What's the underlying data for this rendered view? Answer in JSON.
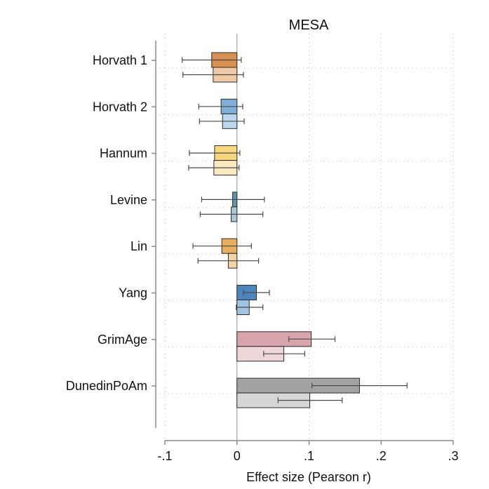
{
  "chart_data": {
    "type": "bar",
    "orientation": "horizontal",
    "title": "MESA",
    "xlabel": "Effect size (Pearson r)",
    "ylabel": "",
    "xlim": [
      -0.1,
      0.3
    ],
    "xticks": [
      -0.1,
      0,
      0.1,
      0.2,
      0.3
    ],
    "xtick_labels": [
      "-.1",
      "0",
      ".1",
      ".2",
      ".3"
    ],
    "grid": true,
    "categories": [
      "Horvath 1",
      "Horvath 2",
      "Hannum",
      "Levine",
      "Lin",
      "Yang",
      "GrimAge",
      "DunedinPoAm"
    ],
    "colors": [
      [
        "#d98e52",
        "#f2c9a6"
      ],
      [
        "#7fafd9",
        "#bcd8ef"
      ],
      [
        "#f6d77e",
        "#fbeac0"
      ],
      [
        "#5f98ad",
        "#a9c9d5"
      ],
      [
        "#e8b05e",
        "#f3d3a5"
      ],
      [
        "#4d86bd",
        "#a3c3e2"
      ],
      [
        "#d9a5ac",
        "#eed6d9"
      ],
      [
        "#a3a3a3",
        "#d6d6d6"
      ]
    ],
    "series": [
      {
        "values": [
          -0.035,
          -0.022,
          -0.031,
          -0.006,
          -0.021,
          0.027,
          0.103,
          0.17
        ],
        "ci_low": [
          -0.076,
          -0.053,
          -0.066,
          -0.049,
          -0.061,
          0.009,
          0.072,
          0.104
        ],
        "ci_high": [
          0.006,
          0.008,
          0.004,
          0.038,
          0.02,
          0.045,
          0.136,
          0.236
        ]
      },
      {
        "values": [
          -0.033,
          -0.02,
          -0.032,
          -0.008,
          -0.012,
          0.017,
          0.065,
          0.101
        ],
        "ci_low": [
          -0.075,
          -0.052,
          -0.067,
          -0.051,
          -0.054,
          -0.001,
          0.037,
          0.057
        ],
        "ci_high": [
          0.009,
          0.01,
          0.003,
          0.036,
          0.03,
          0.036,
          0.094,
          0.146
        ]
      }
    ]
  }
}
